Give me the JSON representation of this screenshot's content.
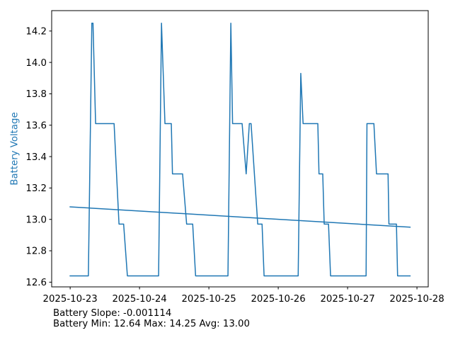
{
  "window": {
    "background": "#ffffff"
  },
  "chart_data": {
    "type": "line",
    "title": "",
    "xlabel": "",
    "ylabel": "Battery Voltage",
    "ylabel_color": "#1f77b4",
    "axis_color": "#000000",
    "grid": false,
    "legend": "none",
    "x_hours_origin": "2025-10-23",
    "xlim": [
      -6.4,
      123.9
    ],
    "ylim": [
      12.57,
      14.33
    ],
    "x_ticks": [
      {
        "t": 0,
        "label": "2025-10-23"
      },
      {
        "t": 24,
        "label": "2025-10-24"
      },
      {
        "t": 48,
        "label": "2025-10-25"
      },
      {
        "t": 72,
        "label": "2025-10-26"
      },
      {
        "t": 96,
        "label": "2025-10-27"
      },
      {
        "t": 120,
        "label": "2025-10-28"
      }
    ],
    "y_ticks": [
      {
        "v": 12.6,
        "label": "12.6"
      },
      {
        "v": 12.8,
        "label": "12.8"
      },
      {
        "v": 13.0,
        "label": "13.0"
      },
      {
        "v": 13.2,
        "label": "13.2"
      },
      {
        "v": 13.4,
        "label": "13.4"
      },
      {
        "v": 13.6,
        "label": "13.6"
      },
      {
        "v": 13.8,
        "label": "13.8"
      },
      {
        "v": 14.0,
        "label": "14.0"
      },
      {
        "v": 14.2,
        "label": "14.2"
      }
    ],
    "series": [
      {
        "name": "battery_voltage",
        "color": "#1f77b4",
        "width": 1.5,
        "points": [
          [
            -0.2,
            12.64
          ],
          [
            6.3,
            12.64
          ],
          [
            7.5,
            14.25
          ],
          [
            7.9,
            14.25
          ],
          [
            8.8,
            13.61
          ],
          [
            15.2,
            13.61
          ],
          [
            16.9,
            12.97
          ],
          [
            18.5,
            12.97
          ],
          [
            19.8,
            12.64
          ],
          [
            30.6,
            12.64
          ],
          [
            31.6,
            14.25
          ],
          [
            32.8,
            13.61
          ],
          [
            35.0,
            13.61
          ],
          [
            35.4,
            13.29
          ],
          [
            38.9,
            13.29
          ],
          [
            40.3,
            12.97
          ],
          [
            42.4,
            12.97
          ],
          [
            43.4,
            12.64
          ],
          [
            54.6,
            12.64
          ],
          [
            55.6,
            14.25
          ],
          [
            56.2,
            13.61
          ],
          [
            59.5,
            13.61
          ],
          [
            60.9,
            13.29
          ],
          [
            62.0,
            13.61
          ],
          [
            62.6,
            13.61
          ],
          [
            64.9,
            12.97
          ],
          [
            66.4,
            12.97
          ],
          [
            67.1,
            12.64
          ],
          [
            78.9,
            12.64
          ],
          [
            79.8,
            13.93
          ],
          [
            80.6,
            13.61
          ],
          [
            85.7,
            13.61
          ],
          [
            86.1,
            13.29
          ],
          [
            87.4,
            13.29
          ],
          [
            87.9,
            12.97
          ],
          [
            89.4,
            12.97
          ],
          [
            90.1,
            12.64
          ],
          [
            102.4,
            12.64
          ],
          [
            102.7,
            13.61
          ],
          [
            105.1,
            13.61
          ],
          [
            106.0,
            13.29
          ],
          [
            110.0,
            13.29
          ],
          [
            110.3,
            12.97
          ],
          [
            112.9,
            12.97
          ],
          [
            113.3,
            12.64
          ],
          [
            117.8,
            12.64
          ]
        ]
      },
      {
        "name": "trend",
        "color": "#1f77b4",
        "width": 1.5,
        "points": [
          [
            -0.2,
            13.08
          ],
          [
            117.8,
            12.95
          ]
        ]
      }
    ],
    "stats": {
      "slope": -0.001114,
      "min": 12.64,
      "max": 14.25,
      "avg": 13.0
    }
  },
  "annotations": {
    "line1": "Battery Slope: -0.001114",
    "line2": "Battery Min: 12.64 Max: 14.25 Avg: 13.00"
  }
}
